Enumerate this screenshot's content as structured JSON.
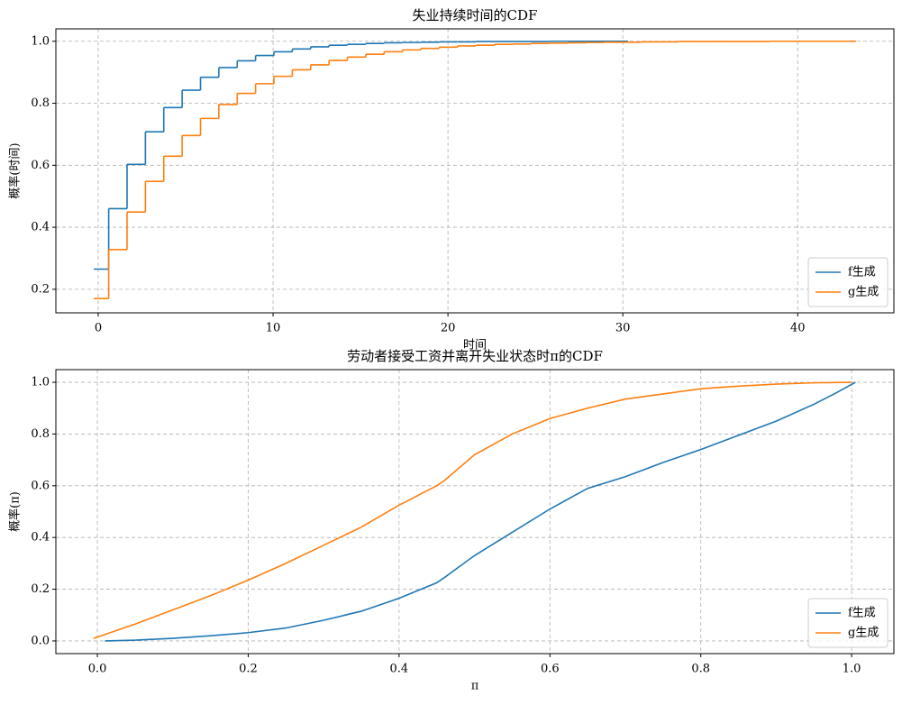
{
  "chart_data": [
    {
      "type": "step",
      "title": "失业持续时间的CDF",
      "x_label": "时间",
      "y_label": "概率(时间)",
      "xlim": [
        -2.42,
        45.5
      ],
      "ylim": [
        0.124,
        1.04
      ],
      "xticks": [
        0,
        10,
        20,
        30,
        40
      ],
      "yticks": [
        0.2,
        0.4,
        0.6,
        0.8,
        {
          "value": 1.0,
          "label": "1.0"
        }
      ],
      "grid": true,
      "legend": "lower right",
      "series": [
        {
          "name": "f生成",
          "color": "#1f77b4",
          "x": [
            -0.25,
            0.6,
            1.65,
            2.7,
            3.75,
            4.8,
            5.85,
            6.9,
            7.95,
            9.0,
            10.05,
            11.1,
            12.15,
            13.2,
            14.25,
            15.3,
            16.35,
            17.4,
            18.45,
            19.5,
            20.55,
            21.6,
            22.65,
            23.7,
            24.75,
            25.8,
            26.85,
            27.9,
            28.95,
            30.3
          ],
          "values": [
            0.265,
            0.46,
            0.603,
            0.708,
            0.786,
            0.842,
            0.884,
            0.915,
            0.937,
            0.954,
            0.966,
            0.975,
            0.982,
            0.987,
            0.99,
            0.993,
            0.995,
            0.996,
            0.997,
            0.998,
            0.998,
            0.999,
            0.999,
            0.999,
            0.999,
            1,
            1,
            1,
            1,
            1
          ]
        },
        {
          "name": "g生成",
          "color": "#ff7f0e",
          "x": [
            -0.25,
            0.6,
            1.65,
            2.7,
            3.75,
            4.8,
            5.85,
            6.9,
            7.95,
            9.0,
            10.05,
            11.1,
            12.15,
            13.2,
            14.25,
            15.3,
            16.35,
            17.4,
            18.45,
            19.5,
            20.55,
            21.6,
            22.65,
            23.7,
            24.75,
            25.8,
            26.85,
            27.9,
            28.95,
            30.0,
            31.05,
            32.1,
            33.15,
            34.2,
            35.25,
            36.3,
            37.35,
            38.4,
            39.45,
            40.5,
            41.55,
            43.35
          ],
          "values": [
            0.17,
            0.328,
            0.449,
            0.548,
            0.629,
            0.696,
            0.751,
            0.796,
            0.832,
            0.863,
            0.887,
            0.908,
            0.924,
            0.938,
            0.949,
            0.958,
            0.966,
            0.972,
            0.977,
            0.981,
            0.985,
            0.987,
            0.99,
            0.991,
            0.993,
            0.994,
            0.995,
            0.996,
            0.997,
            0.997,
            0.998,
            0.998,
            0.999,
            0.999,
            0.999,
            0.999,
            0.999,
            1,
            1,
            1,
            1,
            1
          ]
        }
      ]
    },
    {
      "type": "line",
      "title": "劳动者接受工资并离开失业状态时π的CDF",
      "x_label": "π",
      "y_label": "概率(π)",
      "xlim": [
        -0.055,
        1.056
      ],
      "ylim": [
        -0.049,
        1.049
      ],
      "xticks": [
        {
          "value": 0.0,
          "label": "0.0"
        },
        0.2,
        0.4,
        0.6,
        0.8,
        {
          "value": 1.0,
          "label": "1.0"
        }
      ],
      "yticks": [
        {
          "value": 0.0,
          "label": "0.0"
        },
        0.2,
        0.4,
        0.6,
        0.8,
        {
          "value": 1.0,
          "label": "1.0"
        }
      ],
      "grid": true,
      "legend": "lower right",
      "series": [
        {
          "name": "f生成",
          "color": "#1f77b4",
          "x": [
            0.01,
            0.05,
            0.1,
            0.15,
            0.2,
            0.25,
            0.3,
            0.35,
            0.4,
            0.45,
            0.46,
            0.5,
            0.55,
            0.6,
            0.65,
            0.7,
            0.75,
            0.8,
            0.85,
            0.9,
            0.95,
            0.98,
            1.005
          ],
          "values": [
            0.0,
            0.003,
            0.01,
            0.02,
            0.032,
            0.05,
            0.08,
            0.115,
            0.165,
            0.225,
            0.245,
            0.33,
            0.42,
            0.51,
            0.59,
            0.635,
            0.69,
            0.74,
            0.795,
            0.85,
            0.915,
            0.96,
            1.0
          ]
        },
        {
          "name": "g生成",
          "color": "#ff7f0e",
          "x": [
            -0.005,
            0.05,
            0.1,
            0.15,
            0.2,
            0.25,
            0.3,
            0.35,
            0.4,
            0.45,
            0.46,
            0.5,
            0.55,
            0.6,
            0.65,
            0.7,
            0.75,
            0.8,
            0.85,
            0.9,
            0.95,
            1.0
          ],
          "values": [
            0.01,
            0.065,
            0.12,
            0.175,
            0.235,
            0.3,
            0.37,
            0.44,
            0.525,
            0.6,
            0.62,
            0.72,
            0.8,
            0.86,
            0.9,
            0.935,
            0.955,
            0.975,
            0.985,
            0.993,
            0.998,
            1.0
          ]
        }
      ]
    }
  ]
}
